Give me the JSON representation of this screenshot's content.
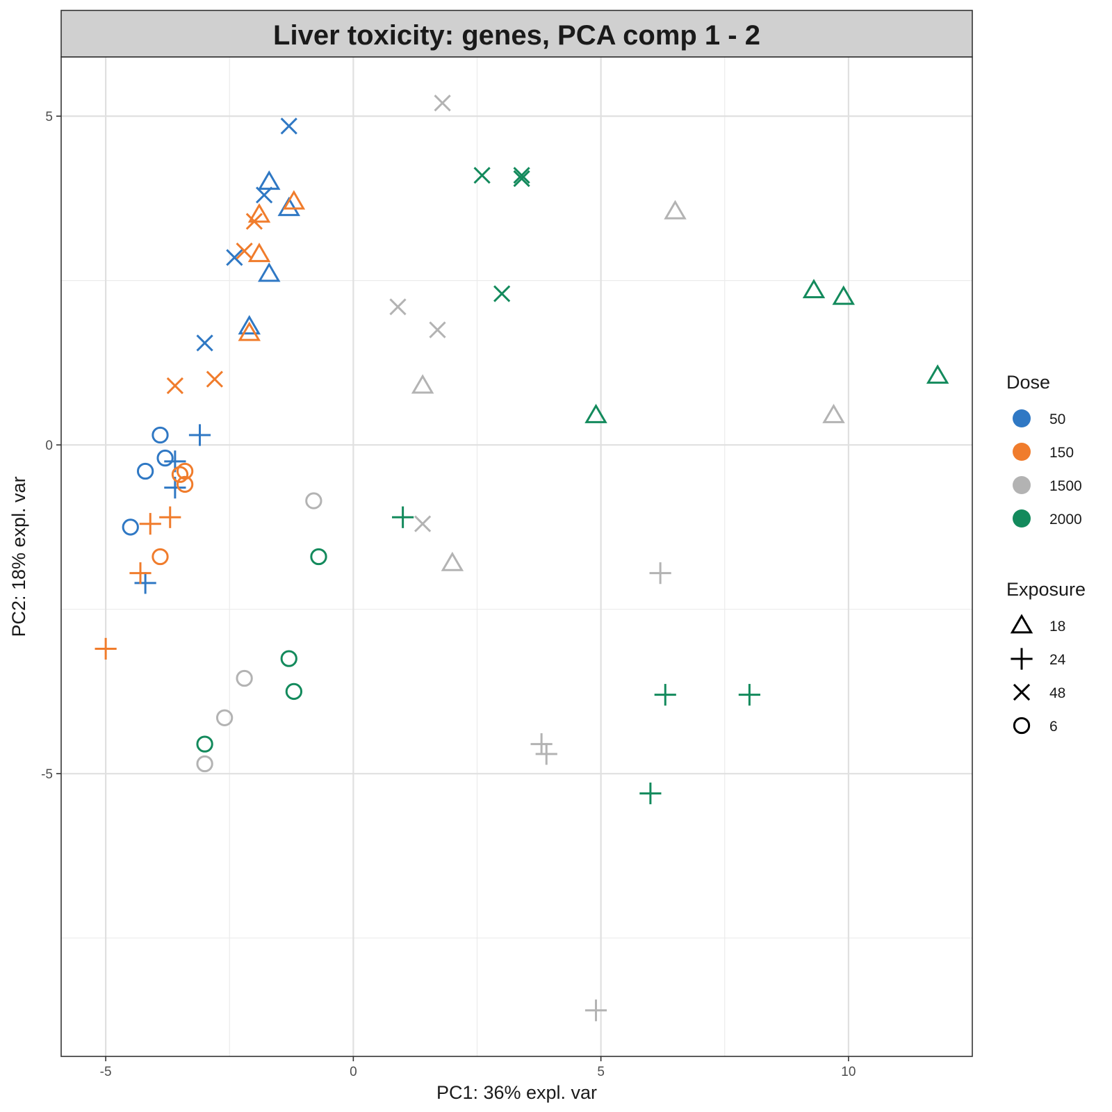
{
  "chart_data": {
    "type": "scatter",
    "title": "Liver toxicity: genes, PCA comp 1 - 2",
    "xlabel": "PC1: 36% expl. var",
    "ylabel": "PC2: 18% expl. var",
    "xlim": [
      -5.9,
      12.5
    ],
    "ylim": [
      -9.3,
      5.9
    ],
    "x_ticks": [
      -5,
      0,
      5,
      10
    ],
    "y_ticks": [
      -5,
      0,
      5
    ],
    "x_tick_labels": [
      "-5",
      "0",
      "5",
      "10"
    ],
    "y_tick_labels": [
      "-5",
      "0",
      "5"
    ],
    "grid": true,
    "legend_position": "right",
    "dose_legend": {
      "title": "Dose",
      "entries": [
        {
          "label": "50",
          "color": "#2f78c4"
        },
        {
          "label": "150",
          "color": "#f07c2c"
        },
        {
          "label": "1500",
          "color": "#b3b3b3"
        },
        {
          "label": "2000",
          "color": "#138a5c"
        }
      ]
    },
    "exposure_legend": {
      "title": "Exposure",
      "entries": [
        {
          "label": "18",
          "shape": "triangle"
        },
        {
          "label": "24",
          "shape": "plus"
        },
        {
          "label": "48",
          "shape": "cross"
        },
        {
          "label": "6",
          "shape": "circle"
        }
      ]
    },
    "series": [
      {
        "dose": "50",
        "exposure": "18",
        "x": [
          -1.7,
          -1.3,
          -1.7,
          -2.1
        ],
        "y": [
          4.0,
          3.6,
          2.6,
          1.8
        ]
      },
      {
        "dose": "50",
        "exposure": "24",
        "x": [
          -3.1,
          -3.6,
          -3.6,
          -4.2
        ],
        "y": [
          0.15,
          -0.25,
          -0.65,
          -2.1
        ]
      },
      {
        "dose": "50",
        "exposure": "48",
        "x": [
          -1.3,
          -1.8,
          -2.4,
          -3.0
        ],
        "y": [
          4.85,
          3.8,
          2.85,
          1.55
        ]
      },
      {
        "dose": "50",
        "exposure": "6",
        "x": [
          -3.9,
          -3.8,
          -4.2,
          -4.5
        ],
        "y": [
          0.15,
          -0.2,
          -0.4,
          -1.25
        ]
      },
      {
        "dose": "150",
        "exposure": "18",
        "x": [
          -1.2,
          -1.9,
          -1.9,
          -2.1
        ],
        "y": [
          3.7,
          3.5,
          2.9,
          1.7
        ]
      },
      {
        "dose": "150",
        "exposure": "24",
        "x": [
          -4.1,
          -3.7,
          -4.3,
          -5.0
        ],
        "y": [
          -1.2,
          -1.1,
          -1.95,
          -3.1
        ]
      },
      {
        "dose": "150",
        "exposure": "48",
        "x": [
          -2.0,
          -2.2,
          -2.8,
          -3.6
        ],
        "y": [
          3.4,
          2.95,
          1.0,
          0.9
        ]
      },
      {
        "dose": "150",
        "exposure": "6",
        "x": [
          -3.5,
          -3.4,
          -3.4,
          -3.9
        ],
        "y": [
          -0.45,
          -0.4,
          -0.6,
          -1.7
        ]
      },
      {
        "dose": "1500",
        "exposure": "18",
        "x": [
          6.5,
          1.4,
          9.7,
          2.0
        ],
        "y": [
          3.55,
          0.9,
          0.45,
          -1.8
        ]
      },
      {
        "dose": "1500",
        "exposure": "24",
        "x": [
          6.2,
          3.8,
          3.9,
          4.9
        ],
        "y": [
          -1.95,
          -4.55,
          -4.7,
          -8.6
        ]
      },
      {
        "dose": "1500",
        "exposure": "48",
        "x": [
          1.8,
          0.9,
          1.7,
          1.4
        ],
        "y": [
          5.2,
          2.1,
          1.75,
          -1.2
        ]
      },
      {
        "dose": "1500",
        "exposure": "6",
        "x": [
          -0.8,
          -2.2,
          -2.6,
          -3.0
        ],
        "y": [
          -0.85,
          -3.55,
          -4.15,
          -4.85
        ]
      },
      {
        "dose": "2000",
        "exposure": "18",
        "x": [
          9.3,
          9.9,
          11.8,
          4.9
        ],
        "y": [
          2.35,
          2.25,
          1.05,
          0.45
        ]
      },
      {
        "dose": "2000",
        "exposure": "24",
        "x": [
          1.0,
          6.3,
          8.0,
          6.0
        ],
        "y": [
          -1.1,
          -3.8,
          -3.8,
          -5.3
        ]
      },
      {
        "dose": "2000",
        "exposure": "48",
        "x": [
          2.6,
          3.4,
          3.4,
          3.0
        ],
        "y": [
          4.1,
          4.1,
          4.05,
          2.3
        ]
      },
      {
        "dose": "2000",
        "exposure": "6",
        "x": [
          -0.7,
          -1.3,
          -1.2,
          -3.0
        ],
        "y": [
          -1.7,
          -3.25,
          -3.75,
          -4.55
        ]
      }
    ]
  }
}
